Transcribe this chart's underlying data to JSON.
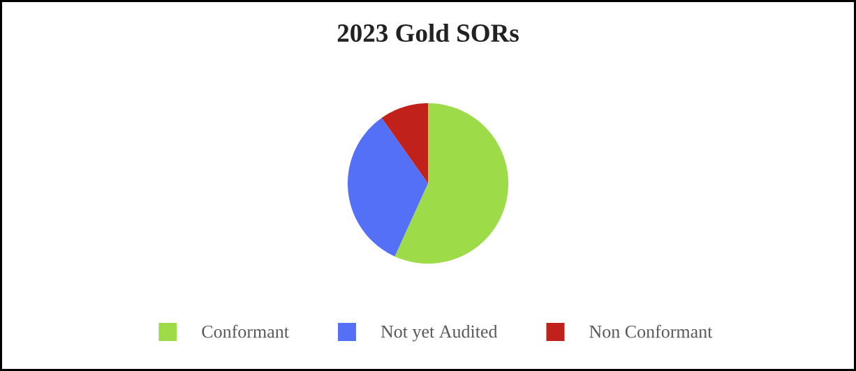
{
  "chart_data": {
    "type": "pie",
    "title": "2023 Gold SORs",
    "categories": [
      "Conformant",
      "Not yet Audited",
      "Non Conformant"
    ],
    "values": [
      56.8,
      33.4,
      9.8
    ],
    "colors": [
      "#9edb48",
      "#5470f6",
      "#c0211a"
    ],
    "legend": "bottom"
  }
}
